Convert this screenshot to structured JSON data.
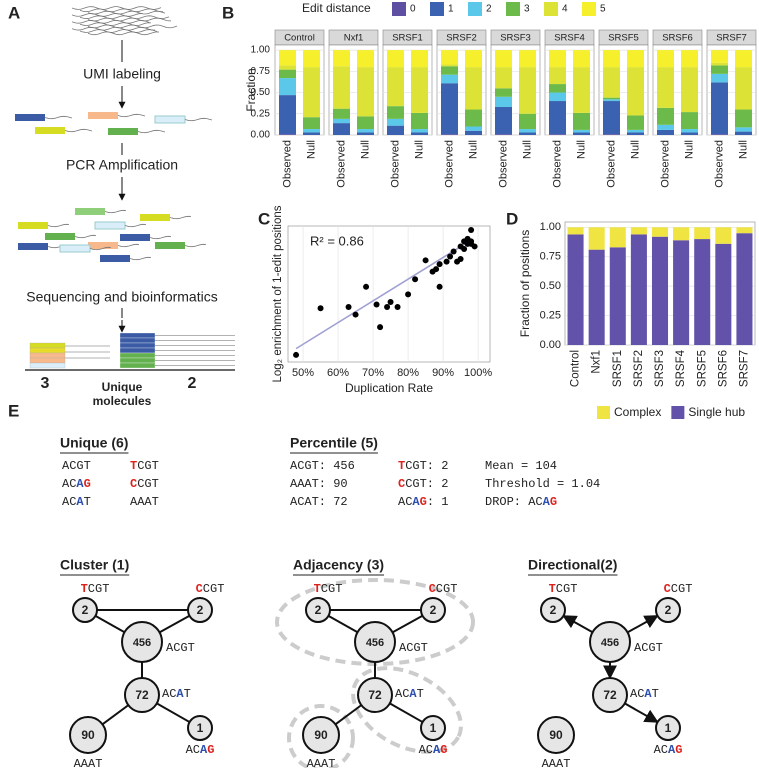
{
  "panel_labels": [
    "A",
    "B",
    "C",
    "D",
    "E"
  ],
  "workflow": {
    "steps": [
      "UMI labeling",
      "PCR Amplification",
      "Sequencing and bioinformatics"
    ],
    "left_count": 3,
    "right_count": 2,
    "center_label": [
      "Unique",
      "molecules"
    ]
  },
  "chart_data": [
    {
      "type": "faceted_stacked_bar",
      "legend_title": "Edit distance",
      "ylabel": "Fraction",
      "facets": [
        "Control",
        "Nxf1",
        "SRSF1",
        "SRSF2",
        "SRSF3",
        "SRSF4",
        "SRSF5",
        "SRSF6",
        "SRSF7"
      ],
      "categories": [
        "Observed",
        "Null"
      ],
      "series": [
        {
          "name": "0",
          "color": "#5e4fa2",
          "values": [
            [
              0.01,
              0
            ],
            [
              0,
              0
            ],
            [
              0,
              0
            ],
            [
              0.01,
              0
            ],
            [
              0.01,
              0
            ],
            [
              0.01,
              0
            ],
            [
              0.01,
              0
            ],
            [
              0,
              0
            ],
            [
              0.01,
              0
            ]
          ]
        },
        {
          "name": "1",
          "color": "#3a62b0",
          "values": [
            [
              0.46,
              0.03
            ],
            [
              0.14,
              0.03
            ],
            [
              0.11,
              0.03
            ],
            [
              0.6,
              0.05
            ],
            [
              0.32,
              0.03
            ],
            [
              0.39,
              0.03
            ],
            [
              0.39,
              0.03
            ],
            [
              0.06,
              0.03
            ],
            [
              0.61,
              0.04
            ]
          ]
        },
        {
          "name": "2",
          "color": "#5bc8ea",
          "values": [
            [
              0.2,
              0.04
            ],
            [
              0.05,
              0.04
            ],
            [
              0.08,
              0.04
            ],
            [
              0.1,
              0.05
            ],
            [
              0.12,
              0.04
            ],
            [
              0.1,
              0.03
            ],
            [
              0.02,
              0.03
            ],
            [
              0.06,
              0.04
            ],
            [
              0.1,
              0.05
            ]
          ]
        },
        {
          "name": "3",
          "color": "#6cbb4a",
          "values": [
            [
              0.1,
              0.14
            ],
            [
              0.12,
              0.15
            ],
            [
              0.15,
              0.19
            ],
            [
              0.1,
              0.2
            ],
            [
              0.1,
              0.18
            ],
            [
              0.1,
              0.2
            ],
            [
              0.02,
              0.17
            ],
            [
              0.2,
              0.2
            ],
            [
              0.1,
              0.21
            ]
          ]
        },
        {
          "name": "4",
          "color": "#dde336",
          "values": [
            [
              0.05,
              0.59
            ],
            [
              0.5,
              0.58
            ],
            [
              0.46,
              0.54
            ],
            [
              0.02,
              0.5
            ],
            [
              0.25,
              0.55
            ],
            [
              0.2,
              0.54
            ],
            [
              0.36,
              0.57
            ],
            [
              0.48,
              0.53
            ],
            [
              0.03,
              0.5
            ]
          ]
        },
        {
          "name": "5",
          "color": "#f6ef2b",
          "values": [
            [
              0.18,
              0.2
            ],
            [
              0.19,
              0.2
            ],
            [
              0.2,
              0.2
            ],
            [
              0.17,
              0.2
            ],
            [
              0.2,
              0.2
            ],
            [
              0.2,
              0.2
            ],
            [
              0.2,
              0.2
            ],
            [
              0.2,
              0.2
            ],
            [
              0.15,
              0.2
            ]
          ]
        }
      ],
      "ylim": [
        0,
        1.06
      ],
      "yticks": [
        {
          "value": 0,
          "label": "0.00"
        },
        {
          "value": 0.25,
          "label": "0.25"
        },
        {
          "value": 0.5,
          "label": "0.50"
        },
        {
          "value": 0.75,
          "label": "0.75"
        },
        {
          "value": 1,
          "label": "1.00"
        }
      ],
      "grid": true
    },
    {
      "type": "scatter",
      "xlabel": "Duplication Rate",
      "ylabel": "Log₂ enrichment of 1-edit positions",
      "annotation": "R² = 0.86",
      "x": [
        48,
        55,
        63,
        65,
        68,
        71,
        72,
        74,
        75,
        77,
        80,
        82,
        85,
        87,
        88,
        89,
        89,
        91,
        92,
        93,
        94,
        95,
        95,
        96,
        96,
        97,
        97,
        98,
        98,
        98,
        99
      ],
      "values": [
        1.2,
        3.05,
        3.1,
        2.8,
        3.9,
        3.2,
        2.3,
        3.1,
        3.3,
        3.1,
        3.6,
        4.2,
        4.95,
        4.5,
        4.6,
        4.8,
        3.9,
        4.9,
        5.1,
        5.3,
        4.9,
        5.5,
        5.0,
        5.7,
        5.4,
        5.6,
        5.8,
        5.6,
        6.15,
        5.7,
        5.5
      ],
      "color": "#000000",
      "fit": {
        "x": [
          48,
          98
        ],
        "y": [
          1.45,
          5.75
        ],
        "color": "#a0a0d2"
      },
      "xlim": [
        45.7,
        103.4
      ],
      "ylim": [
        0.92,
        6.31
      ],
      "xticks": [
        {
          "value": 50,
          "label": "50%"
        },
        {
          "value": 60,
          "label": "60%"
        },
        {
          "value": 70,
          "label": "70%"
        },
        {
          "value": 80,
          "label": "80%"
        },
        {
          "value": 90,
          "label": "90%"
        },
        {
          "value": 100,
          "label": "100%"
        }
      ],
      "grid": true
    },
    {
      "type": "stacked_bar",
      "ylabel": "Fraction of positions",
      "categories": [
        "Control",
        "Nxf1",
        "SRSF1",
        "SRSF2",
        "SRSF3",
        "SRSF4",
        "SRSF5",
        "SRSF6",
        "SRSF7"
      ],
      "series": [
        {
          "name": "Single hub",
          "color": "#6352a9",
          "values": [
            0.94,
            0.81,
            0.83,
            0.94,
            0.92,
            0.89,
            0.9,
            0.86,
            0.95
          ]
        },
        {
          "name": "Complex",
          "color": "#f0e442",
          "values": [
            0.06,
            0.19,
            0.17,
            0.06,
            0.08,
            0.11,
            0.1,
            0.14,
            0.05
          ]
        }
      ],
      "legend_order": [
        "Complex",
        "Single hub"
      ],
      "ylim": [
        0,
        1.045
      ],
      "yticks": [
        {
          "value": 0,
          "label": "0.00"
        },
        {
          "value": 0.25,
          "label": "0.25"
        },
        {
          "value": 0.5,
          "label": "0.50"
        },
        {
          "value": 0.75,
          "label": "0.75"
        },
        {
          "value": 1,
          "label": "1.00"
        }
      ],
      "grid": true,
      "legend": "bottom"
    }
  ],
  "networks": {
    "unique": {
      "title": "Unique (6)",
      "items": [
        {
          "segments": [
            {
              "text": "ACGT"
            }
          ]
        },
        {
          "segments": [
            {
              "text": "T",
              "color": "#e0201b"
            },
            {
              "text": "CGT"
            }
          ]
        },
        {
          "segments": [
            {
              "text": "AC"
            },
            {
              "text": "A",
              "color": "#2b4fb0"
            },
            {
              "text": "G",
              "color": "#e0201b"
            }
          ]
        },
        {
          "segments": [
            {
              "text": "C",
              "color": "#e0201b"
            },
            {
              "text": "CGT"
            }
          ]
        },
        {
          "segments": [
            {
              "text": "AC"
            },
            {
              "text": "A",
              "color": "#2b4fb0"
            },
            {
              "text": "T"
            }
          ]
        },
        {
          "segments": [
            {
              "text": "AAAT"
            }
          ]
        }
      ]
    },
    "percentile": {
      "title": "Percentile (5)",
      "columns": [
        [
          {
            "segments": [
              {
                "text": "ACGT: 456"
              }
            ]
          },
          {
            "segments": [
              {
                "text": "AAAT: 90"
              }
            ]
          },
          {
            "segments": [
              {
                "text": "ACAT: 72"
              }
            ]
          }
        ],
        [
          {
            "segments": [
              {
                "text": "T",
                "color": "#e0201b"
              },
              {
                "text": "CGT: 2"
              }
            ]
          },
          {
            "segments": [
              {
                "text": "C",
                "color": "#e0201b"
              },
              {
                "text": "CGT: 2"
              }
            ]
          },
          {
            "segments": [
              {
                "text": "AC"
              },
              {
                "text": "A",
                "color": "#2b4fb0"
              },
              {
                "text": "G",
                "color": "#e0201b"
              },
              {
                "text": ": 1"
              }
            ]
          }
        ],
        [
          {
            "segments": [
              {
                "text": "Mean = 104"
              }
            ]
          },
          {
            "segments": [
              {
                "text": "Threshold = 1.04"
              }
            ]
          },
          {
            "segments": [
              {
                "text": "DROP: AC"
              },
              {
                "text": "A",
                "color": "#2b4fb0"
              },
              {
                "text": "G",
                "color": "#e0201b"
              }
            ]
          }
        ]
      ]
    },
    "graphs": [
      {
        "title": "Cluster (1)"
      },
      {
        "title": "Adjacency (3)"
      },
      {
        "title": "Directional(2)"
      }
    ],
    "nodes": [
      {
        "count": 2,
        "segments": [
          {
            "text": "T",
            "color": "#e0201b"
          },
          {
            "text": "CGT"
          }
        ]
      },
      {
        "count": 2,
        "segments": [
          {
            "text": "C",
            "color": "#e0201b"
          },
          {
            "text": "CGT"
          }
        ]
      },
      {
        "count": 456,
        "segments": [
          {
            "text": "ACGT"
          }
        ]
      },
      {
        "count": 72,
        "segments": [
          {
            "text": "AC"
          },
          {
            "text": "A",
            "color": "#2b4fb0"
          },
          {
            "text": "T"
          }
        ]
      },
      {
        "count": 90,
        "segments": [
          {
            "text": "AAAT"
          }
        ]
      },
      {
        "count": 1,
        "segments": [
          {
            "text": "AC"
          },
          {
            "text": "A",
            "color": "#2b4fb0"
          },
          {
            "text": "G",
            "color": "#e0201b"
          }
        ]
      }
    ]
  }
}
